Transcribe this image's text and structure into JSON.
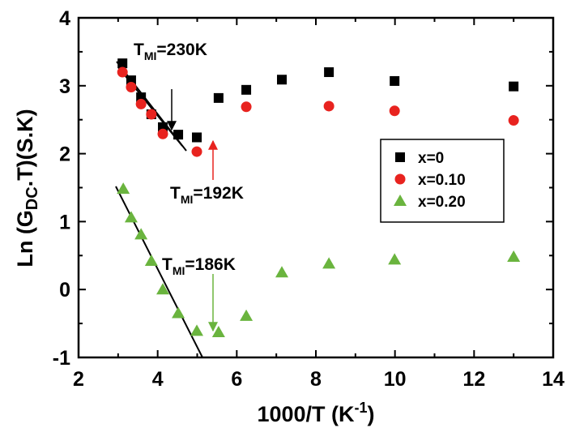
{
  "chart_data": {
    "type": "scatter",
    "x_label": {
      "main": "1000/T (K",
      "superscript": "-1",
      "end": ")"
    },
    "y_label": {
      "main": "Ln (G",
      "subscript": "DC",
      "end": ".T)(S.K)"
    },
    "xlim": [
      2,
      14
    ],
    "ylim": [
      -1,
      4
    ],
    "xticks": [
      2,
      4,
      6,
      8,
      10,
      12,
      14
    ],
    "yticks": [
      -1,
      0,
      1,
      2,
      3,
      4
    ],
    "legend": "right",
    "series": [
      {
        "name": "x=0",
        "color": "#000000",
        "marker": "square",
        "x": [
          3.11,
          3.33,
          3.58,
          3.84,
          4.13,
          4.52,
          4.99,
          5.54,
          6.24,
          7.14,
          8.33,
          9.99,
          13.0
        ],
        "values": [
          3.33,
          3.08,
          2.83,
          2.58,
          2.39,
          2.28,
          2.24,
          2.82,
          2.94,
          3.09,
          3.2,
          3.07,
          2.99
        ]
      },
      {
        "name": "x=0.10",
        "color": "#e8231f",
        "marker": "circle",
        "x": [
          3.11,
          3.33,
          3.58,
          3.84,
          4.13,
          4.99,
          6.24,
          8.33,
          9.99,
          13.0
        ],
        "values": [
          3.2,
          2.98,
          2.73,
          2.58,
          2.29,
          2.03,
          2.69,
          2.7,
          2.63,
          2.49
        ]
      },
      {
        "name": "x=0.20",
        "color": "#6ab43e",
        "marker": "triangle",
        "x": [
          3.13,
          3.33,
          3.58,
          3.84,
          4.13,
          4.52,
          4.99,
          5.54,
          6.24,
          7.14,
          8.33,
          9.99,
          13.0
        ],
        "values": [
          1.48,
          1.06,
          0.81,
          0.42,
          0.0,
          -0.35,
          -0.61,
          -0.63,
          -0.39,
          0.25,
          0.38,
          0.44,
          0.48
        ]
      }
    ],
    "annotations": [
      {
        "symbol": "T",
        "subscript": "MI",
        "value": "=230K"
      },
      {
        "symbol": "T",
        "subscript": "MI",
        "value": "=192K"
      },
      {
        "symbol": "T",
        "subscript": "MI",
        "value": "=186K"
      }
    ]
  }
}
